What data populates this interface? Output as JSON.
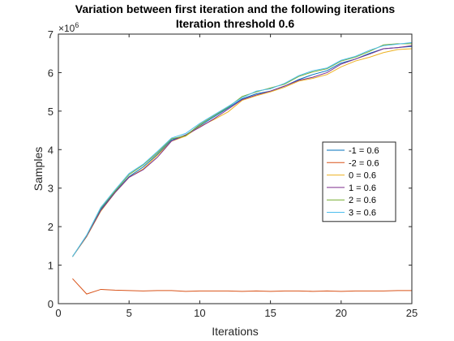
{
  "chart_data": {
    "type": "line",
    "title": "Variation between first iteration and the following iterations",
    "subtitle": "Iteration threshold 0.6",
    "xlabel": "Iterations",
    "ylabel": "Samples",
    "xlim": [
      0,
      25
    ],
    "ylim": [
      0,
      7
    ],
    "y_multiplier": "×10",
    "y_multiplier_exponent": "6",
    "x_ticks": [
      0,
      5,
      10,
      15,
      20,
      25
    ],
    "y_ticks": [
      0,
      1,
      2,
      3,
      4,
      5,
      6,
      7
    ],
    "grid": false,
    "legend_position": "right-middle",
    "x": [
      1,
      2,
      3,
      4,
      5,
      6,
      7,
      8,
      9,
      10,
      11,
      12,
      13,
      14,
      15,
      16,
      17,
      18,
      19,
      20,
      21,
      22,
      23,
      24,
      25
    ],
    "series": [
      {
        "name": "-1 = 0.6",
        "color": "#0072BD",
        "values": [
          1.22,
          1.75,
          2.45,
          2.9,
          3.3,
          3.55,
          3.88,
          4.25,
          4.38,
          4.62,
          4.85,
          5.08,
          5.32,
          5.45,
          5.52,
          5.65,
          5.82,
          5.95,
          6.05,
          6.25,
          6.35,
          6.5,
          6.62,
          6.65,
          6.68
        ]
      },
      {
        "name": "-2 = 0.6",
        "color": "#D95319",
        "values": [
          0.65,
          0.25,
          0.37,
          0.35,
          0.34,
          0.33,
          0.34,
          0.34,
          0.32,
          0.33,
          0.33,
          0.33,
          0.32,
          0.33,
          0.32,
          0.33,
          0.33,
          0.32,
          0.33,
          0.32,
          0.33,
          0.33,
          0.33,
          0.34,
          0.34
        ]
      },
      {
        "name": "0 = 0.6",
        "color": "#EDB120",
        "values": [
          1.22,
          1.74,
          2.4,
          2.88,
          3.28,
          3.5,
          3.85,
          4.22,
          4.35,
          4.6,
          4.78,
          4.98,
          5.28,
          5.4,
          5.5,
          5.62,
          5.78,
          5.85,
          5.95,
          6.15,
          6.3,
          6.4,
          6.52,
          6.6,
          6.62
        ]
      },
      {
        "name": "1 = 0.6",
        "color": "#7E2F8E",
        "values": [
          1.22,
          1.75,
          2.42,
          2.88,
          3.28,
          3.48,
          3.8,
          4.22,
          4.38,
          4.58,
          4.8,
          5.05,
          5.3,
          5.42,
          5.52,
          5.65,
          5.8,
          5.88,
          6.0,
          6.22,
          6.35,
          6.48,
          6.62,
          6.65,
          6.7
        ]
      },
      {
        "name": "2 = 0.6",
        "color": "#77AC30",
        "values": [
          1.22,
          1.77,
          2.48,
          2.92,
          3.35,
          3.6,
          3.92,
          4.28,
          4.36,
          4.65,
          4.88,
          5.1,
          5.38,
          5.5,
          5.6,
          5.7,
          5.9,
          6.02,
          6.1,
          6.3,
          6.4,
          6.55,
          6.72,
          6.75,
          6.75
        ]
      },
      {
        "name": "3 = 0.6",
        "color": "#4DBEEE",
        "values": [
          1.22,
          1.78,
          2.5,
          2.95,
          3.38,
          3.62,
          3.95,
          4.3,
          4.42,
          4.68,
          4.9,
          5.12,
          5.35,
          5.52,
          5.58,
          5.72,
          5.92,
          6.05,
          6.12,
          6.32,
          6.42,
          6.58,
          6.7,
          6.74,
          6.78
        ]
      }
    ]
  }
}
